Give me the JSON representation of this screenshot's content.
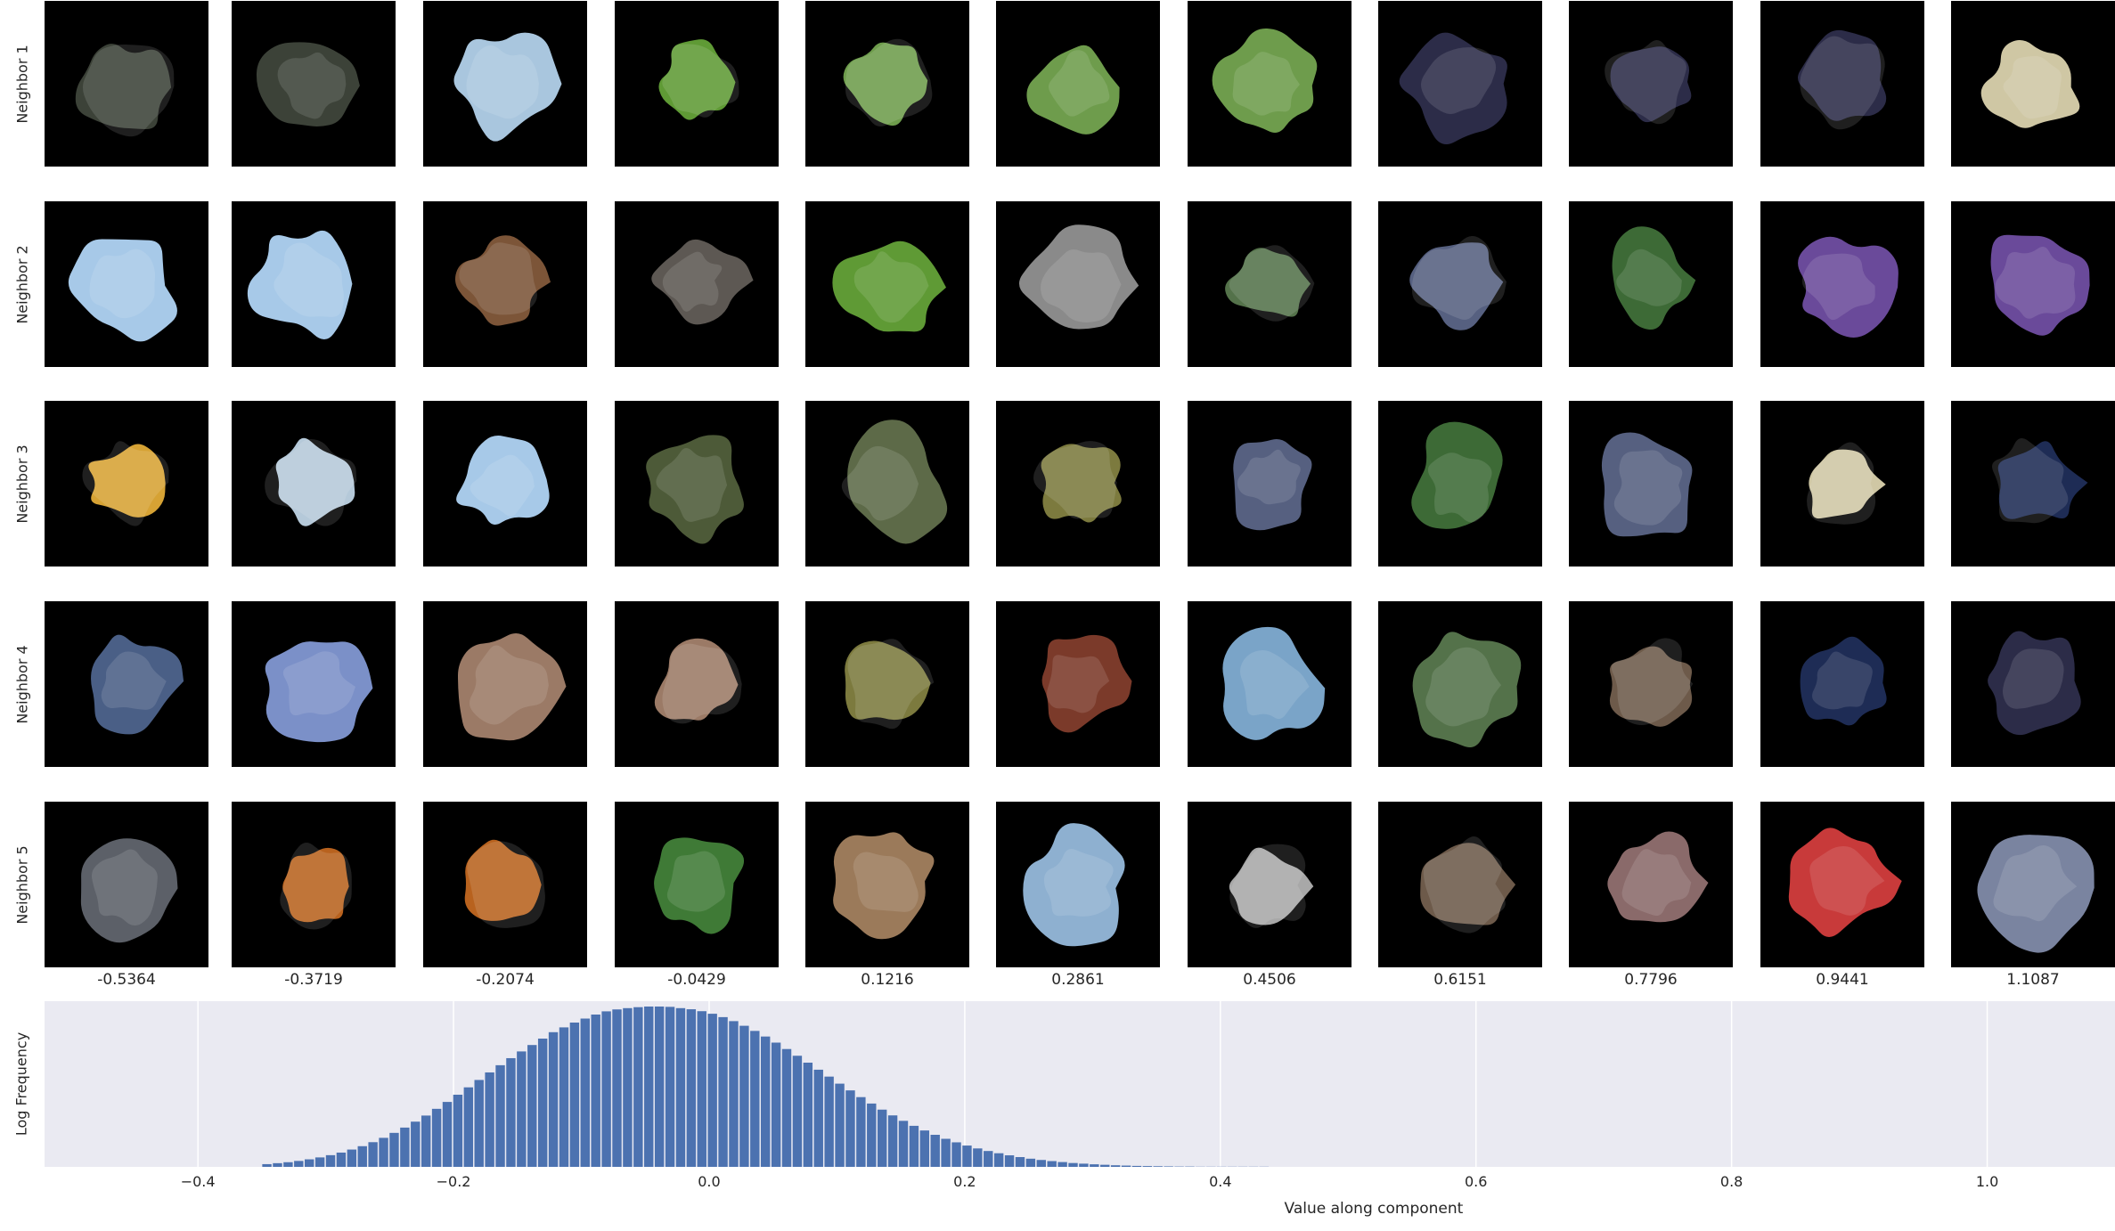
{
  "row_labels": [
    "Neighbor 1",
    "Neighbor 2",
    "Neighbor 3",
    "Neighbor 4",
    "Neighbor 5"
  ],
  "column_values": [
    "-0.5364",
    "-0.3719",
    "-0.2074",
    "-0.0429",
    "0.1216",
    "0.2861",
    "0.4506",
    "0.6151",
    "0.7796",
    "0.9441",
    "1.1087"
  ],
  "patch_colors": [
    [
      "#3c4238",
      "#3c4238",
      "#a9c6de",
      "#5f9a35",
      "#6e9c4c",
      "#6e9c4c",
      "#6e9c4c",
      "#2c2c48",
      "#2c2c48",
      "#2c2c48",
      "#cfc7a4"
    ],
    [
      "#a7c9e8",
      "#a7c9e8",
      "#7c5538",
      "#5d5853",
      "#5f9a35",
      "#8a8a8a",
      "#54724a",
      "#566080",
      "#3d6a36",
      "#6a4a9a",
      "#6a4a9a"
    ],
    [
      "#d6a234",
      "#b5c9d9",
      "#a7c9e8",
      "#4d5a38",
      "#5d6a48",
      "#7c7a3e",
      "#566080",
      "#3d6a36",
      "#566080",
      "#cfc7a4",
      "#1e2c55"
    ],
    [
      "#4a5f86",
      "#7b90c8",
      "#9b7a66",
      "#9b7a66",
      "#7c7a3e",
      "#7b3a2a",
      "#7aa4c8",
      "#54724a",
      "#6d5a4a",
      "#1e2c55",
      "#2c2c48"
    ],
    [
      "#5c6068",
      "#b8621e",
      "#b8621e",
      "#3f7a36",
      "#9b7a5a",
      "#8eb0d0",
      "#a8a8a8",
      "#6d5a4a",
      "#8a6a6a",
      "#c83a3a",
      "#7a84a0"
    ]
  ],
  "chart_data": {
    "type": "bar",
    "title": "",
    "xlabel": "Value along component",
    "ylabel": "Log Frequency",
    "xlim": [
      -0.52,
      1.1
    ],
    "x_ticks": [
      "−0.4",
      "−0.2",
      "0.0",
      "0.2",
      "0.4",
      "0.6",
      "0.8",
      "1.0"
    ],
    "x_tick_values": [
      -0.4,
      -0.2,
      0.0,
      0.2,
      0.4,
      0.6,
      0.8,
      1.0
    ],
    "grid": true,
    "bin_width": 0.0083,
    "bins": [
      -0.35,
      -0.3417,
      -0.3334,
      -0.3251,
      -0.3168,
      -0.3085,
      -0.3002,
      -0.2919,
      -0.2836,
      -0.2753,
      -0.267,
      -0.2587,
      -0.2504,
      -0.2421,
      -0.2338,
      -0.2255,
      -0.2172,
      -0.2089,
      -0.2006,
      -0.1923,
      -0.184,
      -0.1757,
      -0.1674,
      -0.1591,
      -0.1508,
      -0.1425,
      -0.1342,
      -0.1259,
      -0.1176,
      -0.1093,
      -0.101,
      -0.0927,
      -0.0844,
      -0.0761,
      -0.0678,
      -0.0595,
      -0.0512,
      -0.0429,
      -0.0346,
      -0.0263,
      -0.018,
      -0.0097,
      -0.0014,
      0.0069,
      0.0152,
      0.0235,
      0.0318,
      0.0401,
      0.0484,
      0.0567,
      0.065,
      0.0733,
      0.0816,
      0.0899,
      0.0982,
      0.1065,
      0.1148,
      0.1231,
      0.1314,
      0.1397,
      0.148,
      0.1563,
      0.1646,
      0.1729,
      0.1812,
      0.1895,
      0.1978,
      0.2061,
      0.2144,
      0.2227,
      0.231,
      0.2393,
      0.2476,
      0.2559,
      0.2642,
      0.2725,
      0.2808,
      0.2891,
      0.2974,
      0.3057,
      0.314,
      0.3223,
      0.3306,
      0.3389,
      0.3472,
      0.3555,
      0.3638,
      0.3721,
      0.3804,
      0.3887,
      0.397,
      0.4053,
      0.4136,
      0.4219,
      0.4302
    ],
    "values": [
      0.017,
      0.023,
      0.029,
      0.037,
      0.047,
      0.059,
      0.073,
      0.089,
      0.108,
      0.129,
      0.154,
      0.181,
      0.212,
      0.245,
      0.282,
      0.32,
      0.362,
      0.405,
      0.45,
      0.496,
      0.542,
      0.589,
      0.634,
      0.678,
      0.72,
      0.76,
      0.8,
      0.84,
      0.87,
      0.9,
      0.925,
      0.95,
      0.97,
      0.982,
      0.99,
      0.996,
      1.0,
      1.0,
      0.998,
      0.99,
      0.983,
      0.971,
      0.955,
      0.934,
      0.909,
      0.88,
      0.848,
      0.813,
      0.775,
      0.735,
      0.693,
      0.65,
      0.606,
      0.563,
      0.519,
      0.477,
      0.435,
      0.395,
      0.357,
      0.321,
      0.287,
      0.256,
      0.227,
      0.2,
      0.175,
      0.153,
      0.133,
      0.115,
      0.099,
      0.085,
      0.072,
      0.061,
      0.051,
      0.043,
      0.036,
      0.03,
      0.024,
      0.02,
      0.016,
      0.013,
      0.01,
      0.008,
      0.006,
      0.005,
      0.004,
      0.003,
      0.002,
      0.002,
      0.001,
      0.001,
      0.001,
      0.001,
      0.001,
      0.001,
      0.001
    ],
    "bar_color": "#4c72b0",
    "background_color": "#eaeaf2"
  }
}
